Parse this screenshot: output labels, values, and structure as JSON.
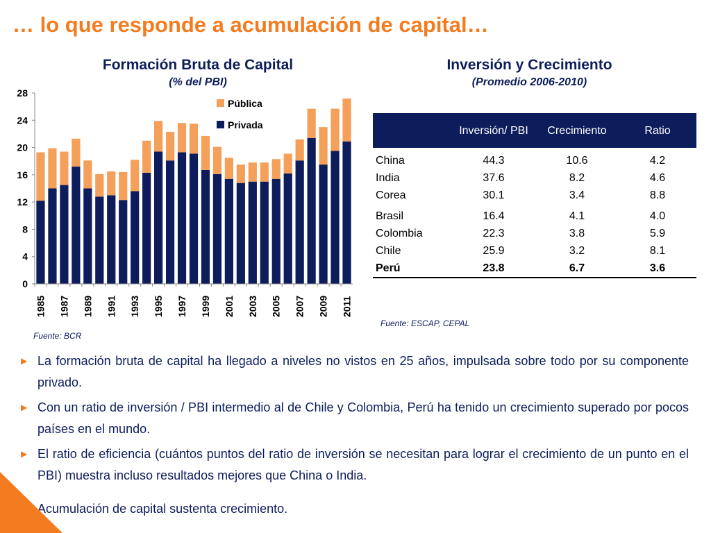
{
  "slide": {
    "title": "… lo que responde a acumulación de capital…"
  },
  "left_panel": {
    "title": "Formación Bruta de Capital",
    "subtitle": "(% del PBI)",
    "source": "Fuente: BCR"
  },
  "right_panel": {
    "title": "Inversión y Crecimiento",
    "subtitle": "(Promedio 2006-2010)",
    "source": "Fuente: ESCAP, CEPAL",
    "table": {
      "headers": [
        "",
        "Inversión/ PBI",
        "Crecimiento",
        "Ratio"
      ],
      "rows": [
        [
          "China",
          "44.3",
          "10.6",
          "4.2"
        ],
        [
          "India",
          "37.6",
          "8.2",
          "4.6"
        ],
        [
          "Corea",
          "30.1",
          "3.4",
          "8.8"
        ],
        [
          "Brasil",
          "16.4",
          "4.1",
          "4.0"
        ],
        [
          "Colombia",
          "22.3",
          "3.8",
          "5.9"
        ],
        [
          "Chile",
          "25.9",
          "3.2",
          "8.1"
        ],
        [
          "Perú",
          "23.8",
          "6.7",
          "3.6"
        ]
      ]
    }
  },
  "bullets": [
    "La formación bruta de capital ha llegado a niveles no vistos en 25 años, impulsada sobre todo por su componente privado.",
    "Con un ratio de inversión / PBI intermedio al de Chile y Colombia, Perú ha tenido un crecimiento superado por pocos países en el mundo.",
    "El ratio de eficiencia (cuántos puntos del ratio de inversión se necesitan para lograr el crecimiento de un punto en el PBI) muestra incluso resultados mejores que China o India."
  ],
  "closing": "Acumulación de capital sustenta crecimiento.",
  "colors": {
    "accent": "#f47c20",
    "navy": "#0d1d5c",
    "publica": "#f5a05a",
    "privada": "#0d1d5c"
  },
  "chart_data": {
    "type": "bar",
    "stacked": true,
    "title": "Formación Bruta de Capital",
    "subtitle": "(% del PBI)",
    "categories": [
      "1985",
      "1986",
      "1987",
      "1988",
      "1989",
      "1990",
      "1991",
      "1992",
      "1993",
      "1994",
      "1995",
      "1996",
      "1997",
      "1998",
      "1999",
      "2000",
      "2001",
      "2002",
      "2003",
      "2004",
      "2005",
      "2006",
      "2007",
      "2008",
      "2009",
      "2010",
      "2011"
    ],
    "tick_labels": [
      "1985",
      "1987",
      "1989",
      "1991",
      "1993",
      "1995",
      "1997",
      "1999",
      "2001",
      "2003",
      "2005",
      "2007",
      "2009",
      "2011"
    ],
    "series": [
      {
        "name": "Privada",
        "values": [
          12.2,
          14.0,
          14.5,
          17.2,
          14.0,
          12.8,
          13.0,
          12.3,
          13.6,
          16.3,
          19.4,
          18.1,
          19.3,
          19.1,
          16.7,
          16.1,
          15.4,
          14.8,
          15.0,
          15.0,
          15.4,
          16.2,
          18.1,
          21.4,
          17.5,
          19.5,
          20.9
        ]
      },
      {
        "name": "Pública",
        "values": [
          7.1,
          5.9,
          4.9,
          4.1,
          4.1,
          3.3,
          3.5,
          4.1,
          4.6,
          4.7,
          4.5,
          4.2,
          4.3,
          4.4,
          5.0,
          4.0,
          3.1,
          2.7,
          2.8,
          2.8,
          2.9,
          2.9,
          3.1,
          4.3,
          5.5,
          6.2,
          6.3
        ]
      }
    ],
    "ylim": [
      0,
      28
    ],
    "yticks": [
      0,
      4,
      8,
      12,
      16,
      20,
      24,
      28
    ],
    "legend_position": "top-right",
    "grid": false
  }
}
